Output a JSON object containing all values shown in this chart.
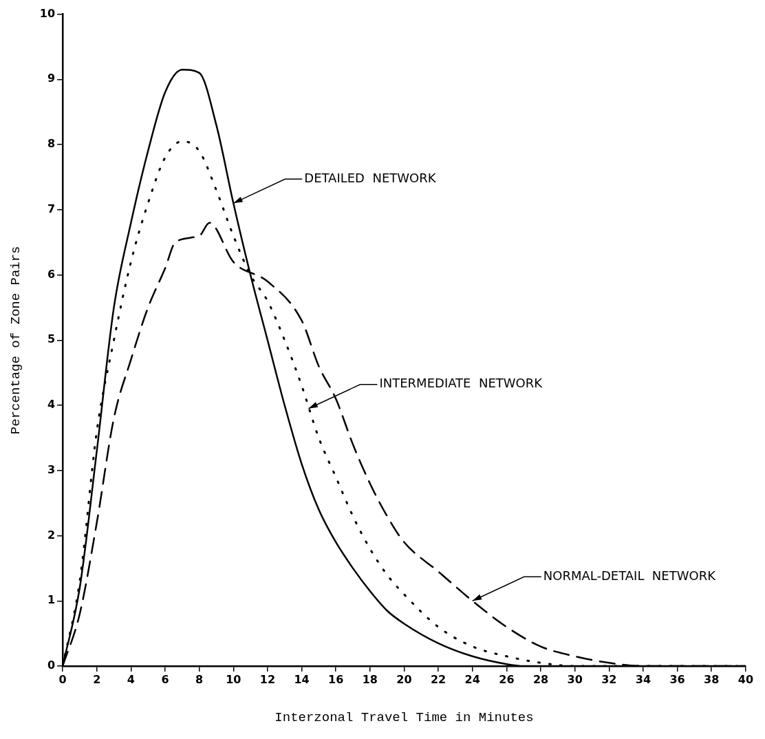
{
  "chart_data": {
    "type": "line",
    "xlabel": "Interzonal Travel Time in Minutes",
    "ylabel": "Percentage of Zone Pairs",
    "xlim": [
      0,
      40
    ],
    "xticks": [
      0,
      2,
      4,
      6,
      8,
      10,
      12,
      14,
      16,
      18,
      20,
      22,
      24,
      26,
      28,
      30,
      32,
      34,
      36,
      38,
      40
    ],
    "ylim": [
      0,
      10
    ],
    "yticks": [
      0,
      1,
      2,
      3,
      4,
      5,
      6,
      7,
      8,
      9,
      10
    ],
    "grid": false,
    "legend": false,
    "marker": "none",
    "series": [
      {
        "color": "#000000",
        "line_style": "solid",
        "x": [
          0,
          1,
          2,
          3,
          4,
          5,
          6,
          7,
          8,
          9,
          10,
          11,
          12,
          13,
          14,
          15,
          16,
          17,
          18,
          19,
          20,
          22,
          24,
          26,
          27,
          40
        ],
        "values": [
          0,
          1.2,
          3.3,
          5.5,
          6.8,
          7.9,
          8.8,
          9.15,
          9.1,
          8.3,
          7.1,
          6.0,
          5.0,
          4.0,
          3.1,
          2.4,
          1.9,
          1.5,
          1.15,
          0.85,
          0.65,
          0.35,
          0.15,
          0.03,
          0,
          0
        ]
      },
      {
        "color": "#000000",
        "line_style": "dotted",
        "x": [
          0,
          1,
          2,
          3,
          4,
          5,
          6,
          7,
          8,
          9,
          10,
          11,
          12,
          13,
          14,
          15,
          16,
          17,
          18,
          19,
          20,
          22,
          24,
          26,
          28,
          30,
          40
        ],
        "values": [
          0,
          1.3,
          3.6,
          5.0,
          6.2,
          7.1,
          7.8,
          8.05,
          7.9,
          7.3,
          6.6,
          6.0,
          5.6,
          5.0,
          4.3,
          3.5,
          2.9,
          2.3,
          1.8,
          1.4,
          1.1,
          0.6,
          0.3,
          0.15,
          0.05,
          0,
          0
        ]
      },
      {
        "color": "#000000",
        "line_style": "dashed",
        "x": [
          0,
          1,
          2,
          3,
          4,
          5,
          6,
          6.6,
          8,
          8.6,
          10,
          12,
          14,
          15,
          16,
          17,
          18,
          19,
          20,
          22,
          24,
          26,
          28,
          30,
          32,
          34,
          40
        ],
        "values": [
          0,
          0.8,
          2.2,
          3.8,
          4.7,
          5.5,
          6.1,
          6.5,
          6.6,
          6.8,
          6.2,
          5.9,
          5.3,
          4.6,
          4.1,
          3.4,
          2.8,
          2.3,
          1.9,
          1.45,
          1.0,
          0.6,
          0.3,
          0.15,
          0.05,
          0,
          0
        ]
      }
    ],
    "annotations": [
      {
        "text": "DETAILED  NETWORK",
        "x": 10,
        "y": 7.1
      },
      {
        "text": "INTERMEDIATE  NETWORK",
        "x": 14.4,
        "y": 3.95
      },
      {
        "text": "NORMAL-DETAIL  NETWORK",
        "x": 24,
        "y": 1.0
      }
    ]
  }
}
